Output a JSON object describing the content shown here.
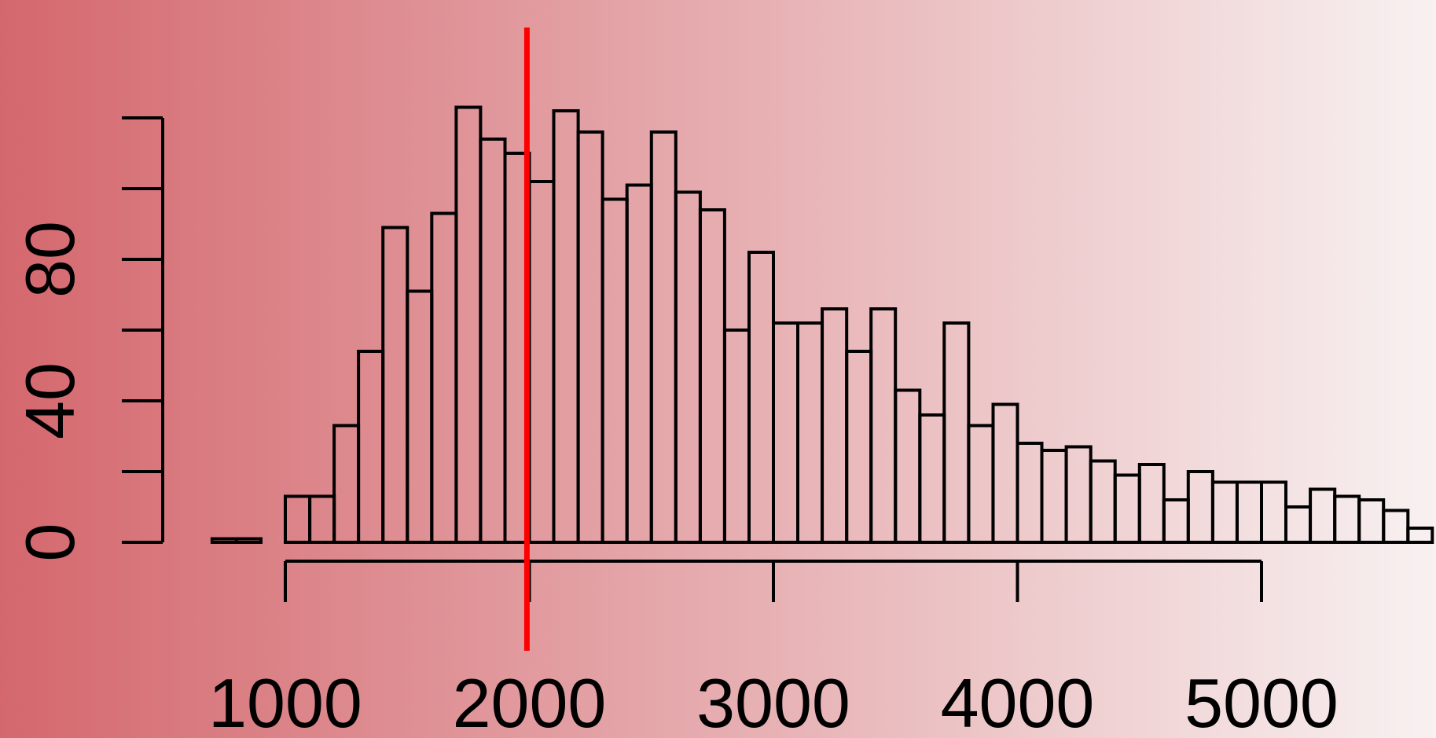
{
  "colors": {
    "background_left": "#d4686e",
    "background_right": "#f8f1f1",
    "bar_fill": "none",
    "bar_stroke": "#000000",
    "axis": "#000000",
    "reference_line": "#ff0000"
  },
  "chart_data": {
    "type": "bar",
    "title": "",
    "xlabel": "",
    "ylabel": "",
    "bin_width": 100,
    "bin_start": 700,
    "counts": [
      1,
      1,
      0,
      13,
      13,
      33,
      54,
      89,
      71,
      93,
      123,
      114,
      110,
      102,
      122,
      116,
      97,
      101,
      116,
      99,
      94,
      60,
      82,
      62,
      62,
      66,
      54,
      66,
      43,
      36,
      62,
      33,
      39,
      28,
      26,
      27,
      23,
      19,
      22,
      12,
      20,
      17,
      17,
      17,
      10,
      15,
      13,
      12,
      9,
      4
    ],
    "xlim": [
      700,
      5700
    ],
    "ylim": [
      0,
      120
    ],
    "x_ticks": [
      1000,
      2000,
      3000,
      4000,
      5000
    ],
    "x_tick_labels": [
      "1000",
      "2000",
      "3000",
      "4000",
      "5000"
    ],
    "y_ticks": [
      0,
      20,
      40,
      60,
      80,
      100,
      120
    ],
    "y_tick_labels": [
      "0",
      "",
      "40",
      "",
      "80",
      "",
      ""
    ],
    "reference_line_x": 1990,
    "grid": false,
    "legend": "none"
  }
}
